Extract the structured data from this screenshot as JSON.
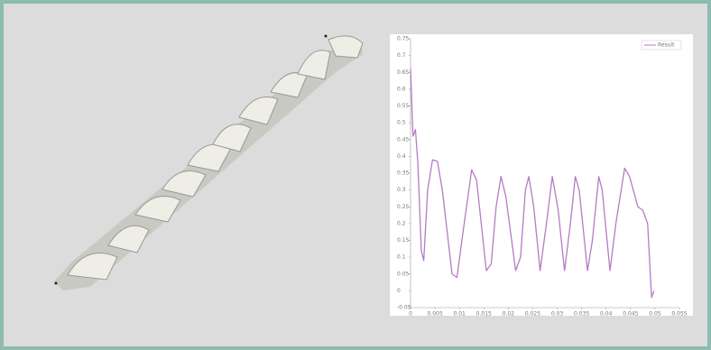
{
  "chart_data": {
    "type": "line",
    "x": [
      0,
      0.0005,
      0.001,
      0.0015,
      0.0022,
      0.0027,
      0.0035,
      0.0045,
      0.0055,
      0.0065,
      0.0085,
      0.0095,
      0.0105,
      0.0125,
      0.0135,
      0.0155,
      0.0165,
      0.0175,
      0.0185,
      0.0195,
      0.0215,
      0.0225,
      0.0235,
      0.0242,
      0.0252,
      0.0265,
      0.0278,
      0.029,
      0.0302,
      0.0315,
      0.0327,
      0.0337,
      0.0345,
      0.0362,
      0.0372,
      0.0385,
      0.0392,
      0.0408,
      0.042,
      0.0438,
      0.0448,
      0.0465,
      0.0475,
      0.0485,
      0.0493,
      0.0498
    ],
    "series": [
      {
        "name": "Result",
        "color": "#b47cc4",
        "values": [
          0.66,
          0.46,
          0.48,
          0.38,
          0.12,
          0.09,
          0.3,
          0.39,
          0.385,
          0.3,
          0.05,
          0.04,
          0.15,
          0.36,
          0.33,
          0.06,
          0.08,
          0.25,
          0.34,
          0.28,
          0.06,
          0.1,
          0.3,
          0.34,
          0.25,
          0.06,
          0.2,
          0.34,
          0.24,
          0.06,
          0.2,
          0.34,
          0.3,
          0.06,
          0.15,
          0.34,
          0.3,
          0.06,
          0.2,
          0.365,
          0.34,
          0.25,
          0.24,
          0.2,
          -0.02,
          0.0
        ]
      }
    ],
    "xlim": [
      0,
      0.055
    ],
    "xticks": [
      0,
      0.005,
      0.01,
      0.015,
      0.02,
      0.025,
      0.03,
      0.035,
      0.04,
      0.045,
      0.05,
      0.055
    ],
    "ylim": [
      -0.05,
      0.75
    ],
    "yticks": [
      -0.05,
      0,
      0.05,
      0.1,
      0.15,
      0.2,
      0.25,
      0.3,
      0.35,
      0.4,
      0.45,
      0.5,
      0.55,
      0.6,
      0.65,
      0.7,
      0.75
    ],
    "grid": false,
    "legend": "upper-right"
  }
}
